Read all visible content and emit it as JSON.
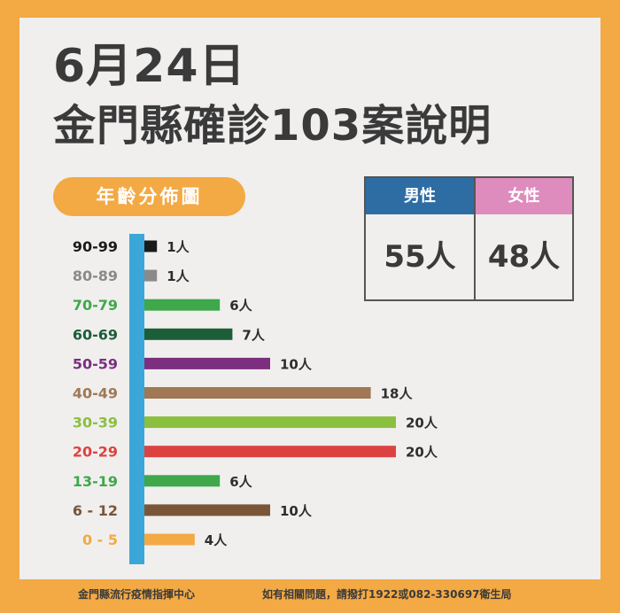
{
  "header": {
    "line1": "6月24日",
    "line2": "金門縣確診103案說明"
  },
  "section_label": "年齡分佈圖",
  "gender": {
    "male_label": "男性",
    "female_label": "女性",
    "male_value": "55人",
    "female_value": "48人",
    "male_color": "#2e6ca4",
    "female_color": "#de8bbd"
  },
  "chart_data": {
    "type": "bar",
    "orientation": "horizontal",
    "categories": [
      "90-99",
      "80-89",
      "70-79",
      "60-69",
      "50-59",
      "40-49",
      "30-39",
      "20-29",
      "13-19",
      "6 - 12",
      "0 - 5"
    ],
    "values": [
      1,
      1,
      6,
      7,
      10,
      18,
      20,
      20,
      6,
      10,
      4
    ],
    "value_labels": [
      "1人",
      "1人",
      "6人",
      "7人",
      "10人",
      "18人",
      "20人",
      "20人",
      "6人",
      "10人",
      "4人"
    ],
    "colors": [
      "#1a1a1a",
      "#8a8a8a",
      "#3ea84a",
      "#1b5e38",
      "#7d2f7f",
      "#a07855",
      "#8bbf3f",
      "#dc4340",
      "#3ea84a",
      "#7a5538",
      "#f3a944"
    ],
    "axis_color": "#3aa7d8"
  },
  "footer": {
    "left": "金門縣流行疫情指揮中心",
    "right": "如有相關問題，請撥打1922或082-330697衛生局"
  }
}
